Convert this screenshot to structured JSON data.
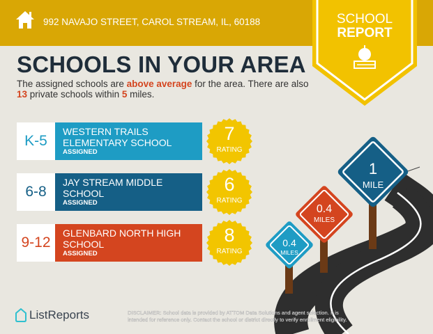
{
  "header": {
    "address": "992 NAVAJO STREET, CAROL STREAM, IL, 60188",
    "home_icon": "house-icon"
  },
  "badge": {
    "line1": "SCHOOL",
    "line2": "REPORT",
    "icon": "apple-on-book-icon"
  },
  "title": "SCHOOLS IN YOUR AREA",
  "intro": {
    "p1": "The assigned schools are ",
    "h1": "above average",
    "p2": " for the area. There are also ",
    "h2": "13",
    "p3": " private schools within ",
    "h3": "5",
    "p4": " miles."
  },
  "schools": [
    {
      "grade": "K-5",
      "name": "WESTERN TRAILS ELEMENTARY SCHOOL",
      "status": "ASSIGNED",
      "rating": "7",
      "rating_label": "RATING",
      "color": "#1e9cc4"
    },
    {
      "grade": "6-8",
      "name": "JAY STREAM MIDDLE SCHOOL",
      "status": "ASSIGNED",
      "rating": "6",
      "rating_label": "RATING",
      "color": "#155f86"
    },
    {
      "grade": "9-12",
      "name": "GLENBARD NORTH HIGH SCHOOL",
      "status": "ASSIGNED",
      "rating": "8",
      "rating_label": "RATING",
      "color": "#d4451f"
    }
  ],
  "signs": [
    {
      "distance": "0.4",
      "unit": "MILES",
      "color": "#1e9cc4"
    },
    {
      "distance": "0.4",
      "unit": "MILES",
      "color": "#d4451f"
    },
    {
      "distance": "1",
      "unit": "MILE",
      "color": "#155f86"
    }
  ],
  "footer": {
    "logo": "ListReports",
    "disclaimer_label": "DISCLAIMER:",
    "disclaimer": " School data is provided by ATTOM Data Solutions and agent selection. It is intended for reference only. Contact the school or district directly to verify enrollment eligibility."
  },
  "colors": {
    "header": "#d9a705",
    "badge": "#f2c200",
    "title": "#1f2d3a",
    "accent": "#d4451f",
    "seal": "#f2c500"
  }
}
